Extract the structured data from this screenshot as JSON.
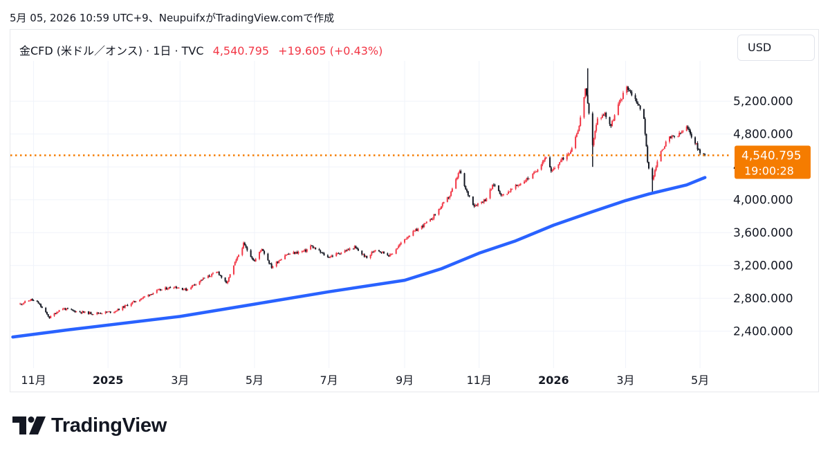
{
  "header": {
    "caption": "5月 05, 2026 10:59 UTC+9、NeupuifxがTradingView.comで作成"
  },
  "legend": {
    "symbol": "金CFD (米ドル／オンス) · 1日 · TVC",
    "price": "4,540.795",
    "change": "+19.605 (+0.43%)"
  },
  "currency_button": {
    "label": "USD"
  },
  "price_tag": {
    "value": "4,540.795",
    "countdown": "19:00:28"
  },
  "brand": {
    "name": "TradingView"
  },
  "colors": {
    "up": "#f23645",
    "down": "#131722",
    "ma": "#2962ff",
    "price_line": "#f57c00",
    "grid": "#f0f3fa"
  },
  "chart_data": {
    "type": "candlestick",
    "symbol": "金CFD (米ドル／オンス)",
    "interval": "1日",
    "x_tick_labels": [
      "11月",
      "2025",
      "3月",
      "5月",
      "7月",
      "9月",
      "11月",
      "2026",
      "3月",
      "5月"
    ],
    "y_tick_labels": [
      "2,400.000",
      "2,800.000",
      "3,200.000",
      "3,600.000",
      "4,000.000",
      "4,400.000",
      "4,800.000",
      "5,200.000"
    ],
    "ylim": [
      2120,
      5690
    ],
    "last_price": 4540.795,
    "close_path": [
      [
        "2024-10-21",
        2730
      ],
      [
        "2024-10-30",
        2785
      ],
      [
        "2024-11-05",
        2740
      ],
      [
        "2024-11-14",
        2565
      ],
      [
        "2024-11-24",
        2680
      ],
      [
        "2024-12-06",
        2640
      ],
      [
        "2024-12-20",
        2615
      ],
      [
        "2025-01-06",
        2640
      ],
      [
        "2025-01-24",
        2770
      ],
      [
        "2025-02-10",
        2890
      ],
      [
        "2025-02-24",
        2945
      ],
      [
        "2025-03-06",
        2905
      ],
      [
        "2025-03-20",
        3040
      ],
      [
        "2025-04-01",
        3120
      ],
      [
        "2025-04-08",
        2975
      ],
      [
        "2025-04-15",
        3230
      ],
      [
        "2025-04-22",
        3460
      ],
      [
        "2025-05-01",
        3250
      ],
      [
        "2025-05-07",
        3410
      ],
      [
        "2025-05-15",
        3180
      ],
      [
        "2025-05-26",
        3330
      ],
      [
        "2025-06-12",
        3380
      ],
      [
        "2025-06-16",
        3440
      ],
      [
        "2025-06-30",
        3300
      ],
      [
        "2025-07-22",
        3420
      ],
      [
        "2025-08-01",
        3290
      ],
      [
        "2025-08-08",
        3400
      ],
      [
        "2025-08-20",
        3320
      ],
      [
        "2025-09-03",
        3550
      ],
      [
        "2025-09-22",
        3750
      ],
      [
        "2025-10-08",
        4050
      ],
      [
        "2025-10-16",
        4350
      ],
      [
        "2025-10-21",
        4120
      ],
      [
        "2025-10-28",
        3930
      ],
      [
        "2025-11-06",
        4000
      ],
      [
        "2025-11-13",
        4190
      ],
      [
        "2025-11-20",
        4050
      ],
      [
        "2025-12-05",
        4200
      ],
      [
        "2025-12-15",
        4300
      ],
      [
        "2025-12-26",
        4530
      ],
      [
        "2025-12-30",
        4330
      ],
      [
        "2026-01-06",
        4460
      ],
      [
        "2026-01-15",
        4600
      ],
      [
        "2026-01-22",
        4900
      ],
      [
        "2026-01-27",
        5350
      ],
      [
        "2026-01-29",
        5150
      ],
      [
        "2026-02-02",
        4680
      ],
      [
        "2026-02-06",
        4980
      ],
      [
        "2026-02-12",
        5050
      ],
      [
        "2026-02-17",
        4900
      ],
      [
        "2026-02-23",
        5150
      ],
      [
        "2026-03-02",
        5380
      ],
      [
        "2026-03-10",
        5200
      ],
      [
        "2026-03-16",
        5000
      ],
      [
        "2026-03-19",
        4450
      ],
      [
        "2026-03-23",
        4250
      ],
      [
        "2026-03-30",
        4600
      ],
      [
        "2026-04-06",
        4750
      ],
      [
        "2026-04-13",
        4780
      ],
      [
        "2026-04-20",
        4880
      ],
      [
        "2026-04-27",
        4700
      ],
      [
        "2026-05-01",
        4570
      ],
      [
        "2026-05-05",
        4540.795
      ]
    ],
    "wicks": [
      {
        "date": "2026-01-29",
        "high": 5600,
        "low": 5200
      },
      {
        "date": "2026-02-02",
        "high": 4800,
        "low": 4400
      },
      {
        "date": "2026-03-23",
        "high": 4300,
        "low": 4100
      }
    ],
    "moving_average": [
      [
        "2024-10-15",
        2330
      ],
      [
        "2024-12-01",
        2420
      ],
      [
        "2025-03-01",
        2580
      ],
      [
        "2025-05-01",
        2730
      ],
      [
        "2025-07-01",
        2880
      ],
      [
        "2025-09-01",
        3020
      ],
      [
        "2025-10-01",
        3160
      ],
      [
        "2025-11-01",
        3350
      ],
      [
        "2025-12-01",
        3500
      ],
      [
        "2026-01-01",
        3690
      ],
      [
        "2026-02-01",
        3850
      ],
      [
        "2026-03-01",
        3990
      ],
      [
        "2026-03-20",
        4070
      ],
      [
        "2026-04-20",
        4180
      ],
      [
        "2026-05-05",
        4270
      ]
    ]
  }
}
